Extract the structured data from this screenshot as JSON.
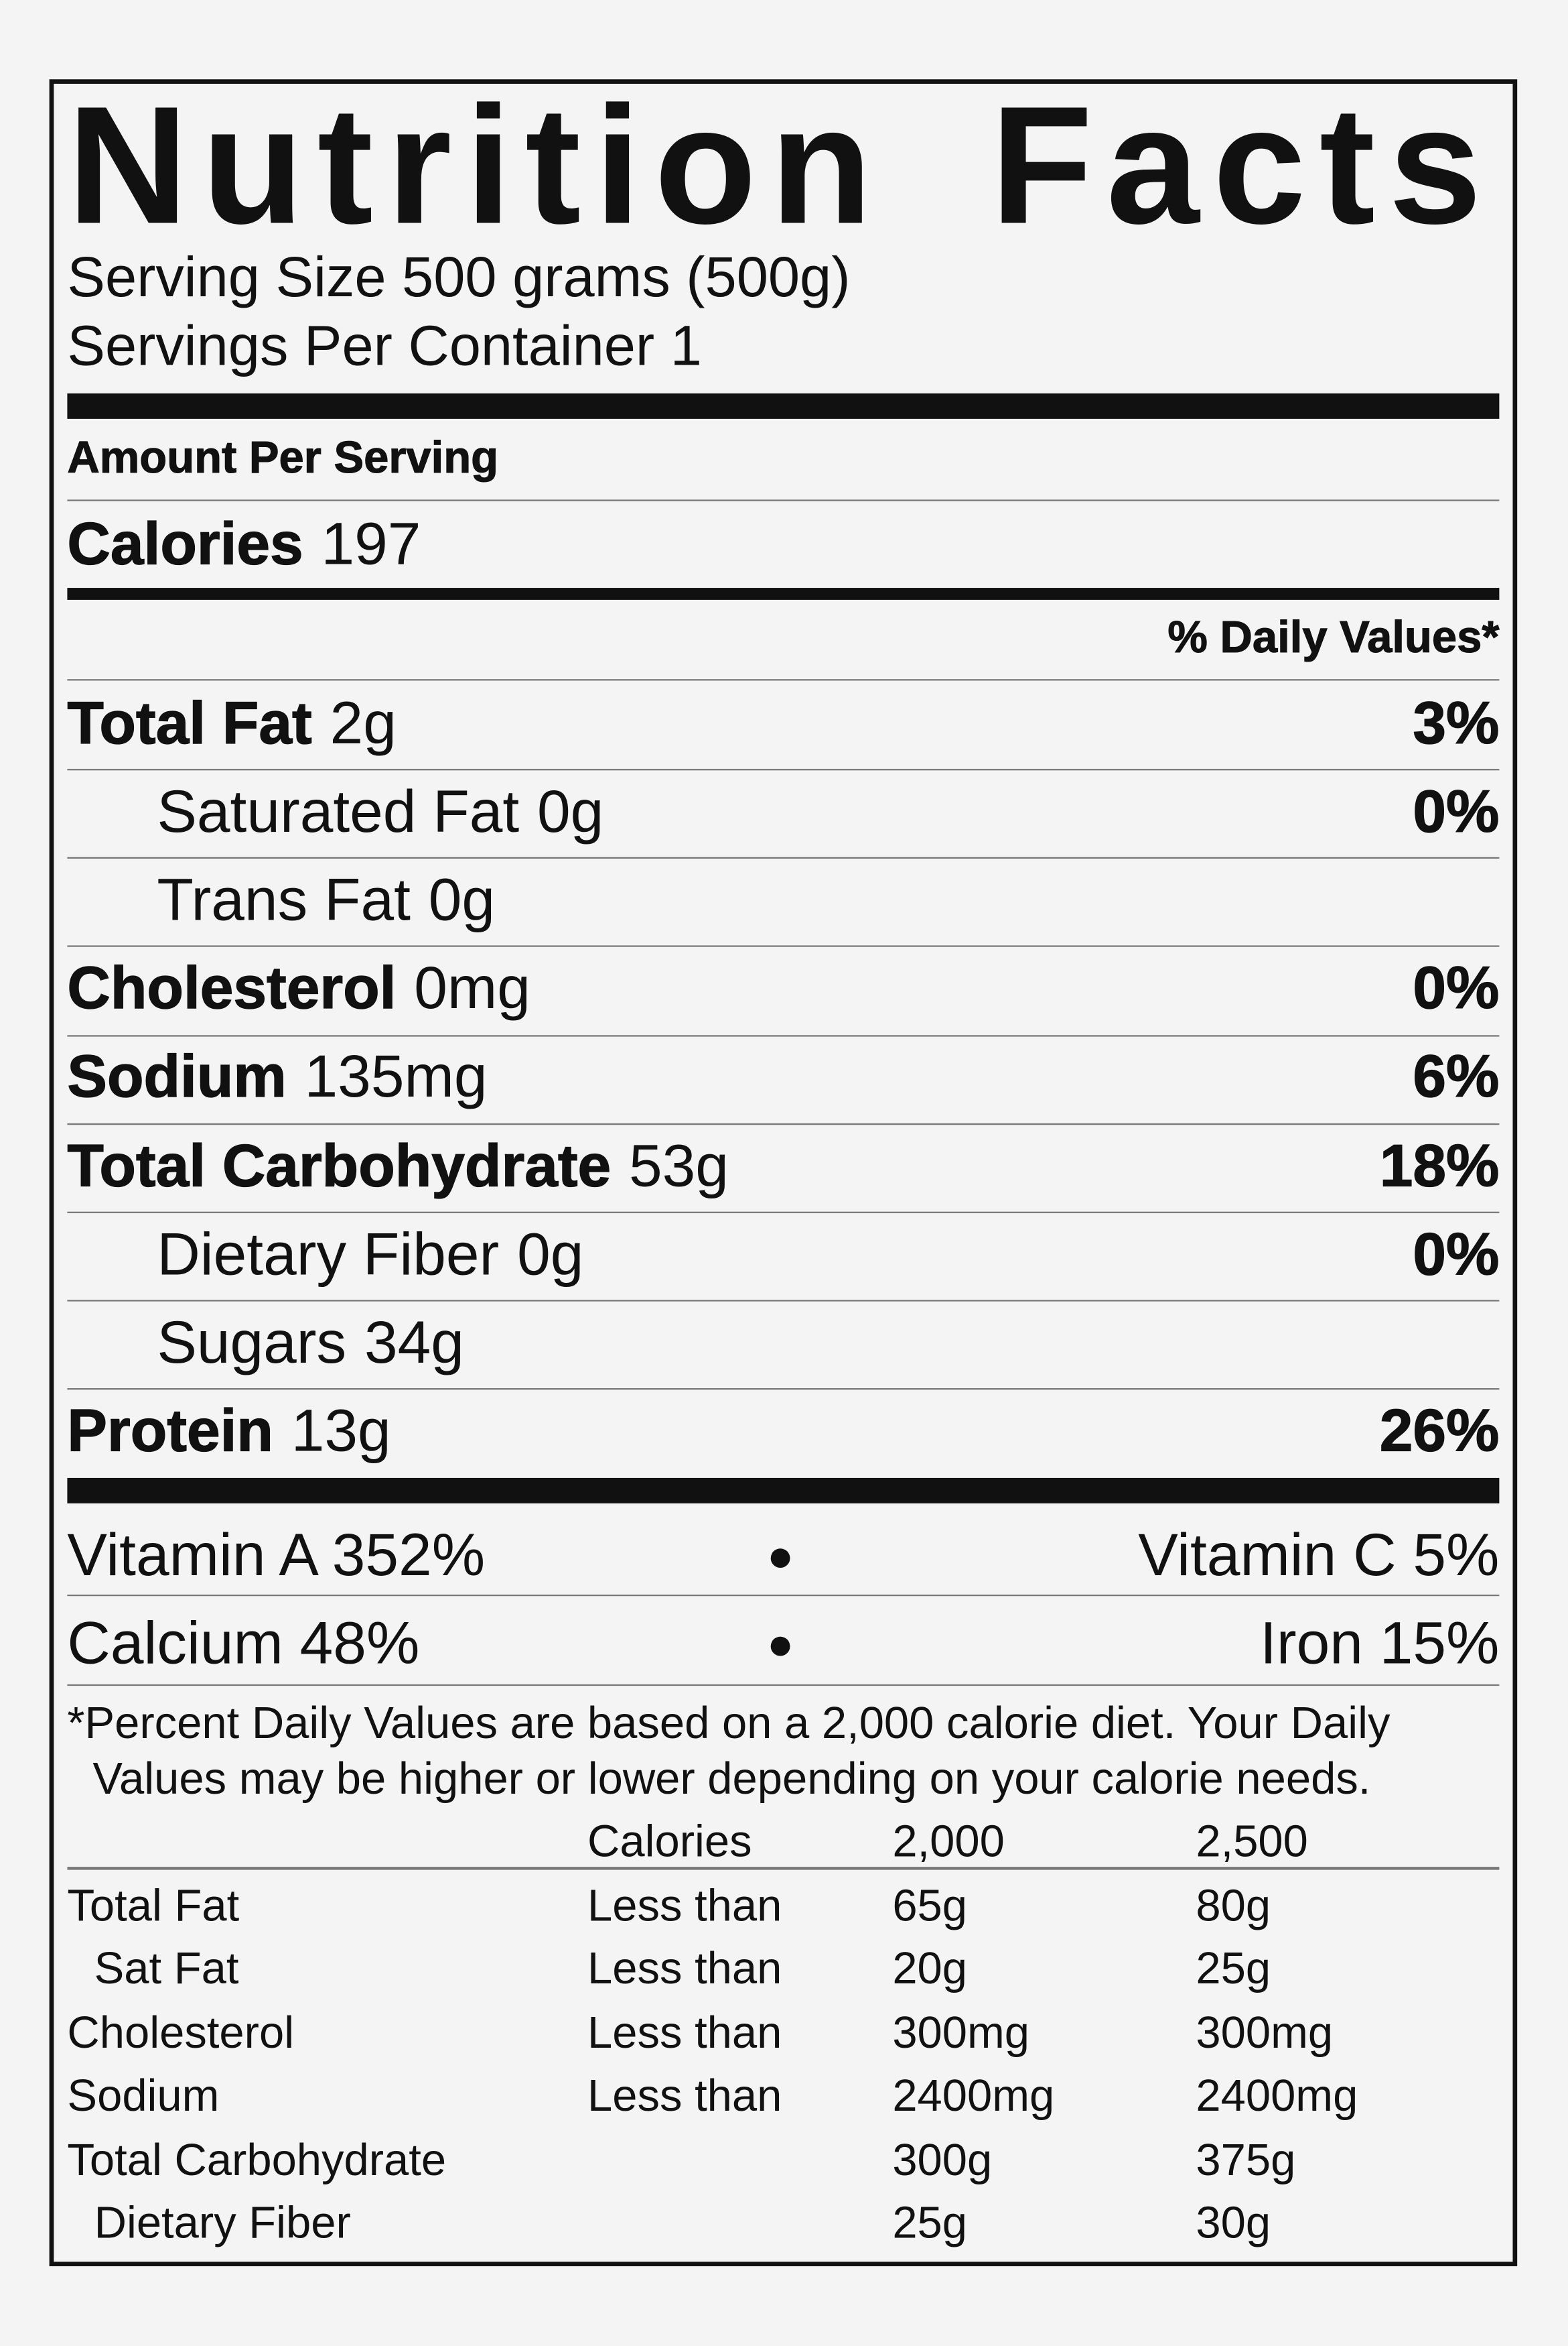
{
  "title": "Nutrition Facts",
  "serving_size": "Serving Size 500 grams (500g)",
  "servings_per_container": "Servings Per Container 1",
  "amount_per_serving": "Amount Per Serving",
  "calories": {
    "label": "Calories",
    "value": "197"
  },
  "daily_values_header": "% Daily Values*",
  "nutrients": [
    {
      "label": "Total Fat",
      "amount": "2g",
      "pct": "3%"
    },
    {
      "label": "Saturated Fat",
      "amount": "0g",
      "pct": "0%"
    },
    {
      "label": "Trans Fat",
      "amount": "0g",
      "pct": ""
    },
    {
      "label": "Cholesterol",
      "amount": "0mg",
      "pct": "0%"
    },
    {
      "label": "Sodium",
      "amount": "135mg",
      "pct": "6%"
    },
    {
      "label": "Total Carbohydrate",
      "amount": "53g",
      "pct": "18%"
    },
    {
      "label": "Dietary Fiber",
      "amount": "0g",
      "pct": "0%"
    },
    {
      "label": "Sugars",
      "amount": "34g",
      "pct": ""
    },
    {
      "label": "Protein",
      "amount": "13g",
      "pct": "26%"
    }
  ],
  "vitamins": [
    {
      "left": "Vitamin A 352%",
      "bullet": "●",
      "right": "Vitamin C 5%"
    },
    {
      "left": "Calcium 48%",
      "bullet": "●",
      "right": "Iron 15%"
    }
  ],
  "footnote": {
    "line1": "*Percent Daily Values are based on a 2,000 calorie diet. Your Daily",
    "line2": "Values may be higher or lower depending on your calorie needs."
  },
  "reference_table": {
    "header": [
      "",
      "Calories",
      "2,000",
      "2,500"
    ],
    "rows": [
      [
        "Total Fat",
        "Less than",
        "65g",
        "80g"
      ],
      [
        "Sat Fat",
        "Less than",
        "20g",
        "25g"
      ],
      [
        "Cholesterol",
        "Less than",
        "300mg",
        "300mg"
      ],
      [
        "Sodium",
        "Less than",
        "2400mg",
        "2400mg"
      ],
      [
        "Total Carbohydrate",
        "",
        "300g",
        "375g"
      ],
      [
        "Dietary Fiber",
        "",
        "25g",
        "30g"
      ]
    ]
  }
}
